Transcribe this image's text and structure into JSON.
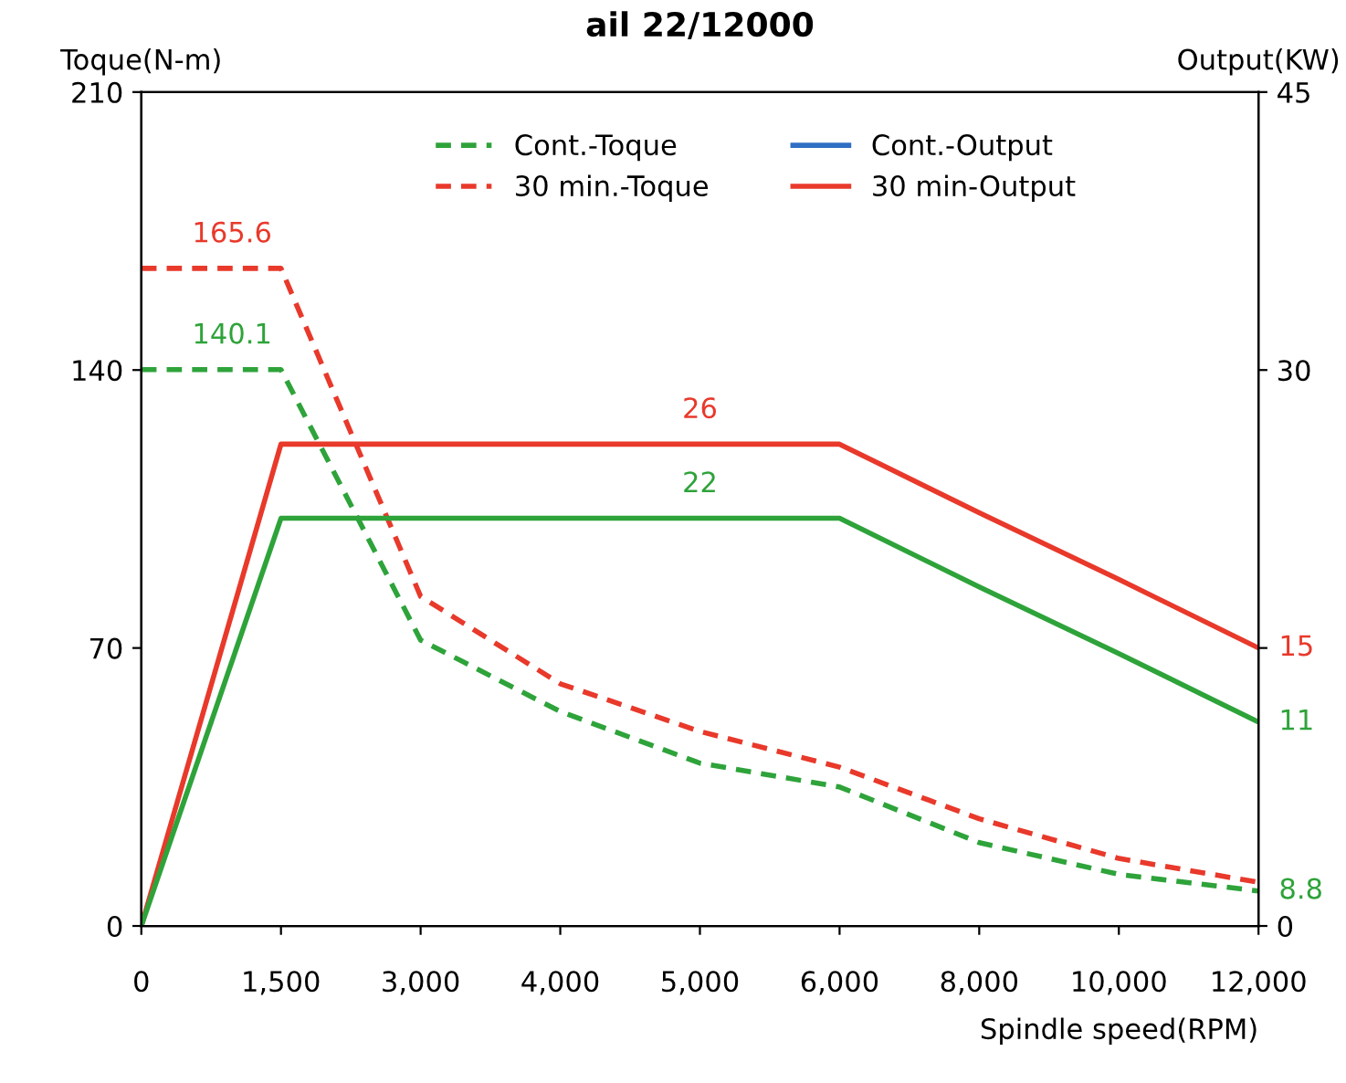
{
  "chart_data": {
    "type": "line",
    "title": "ail 22/12000",
    "ylabel": "Toque(N-m)",
    "y2label": "Output(KW)",
    "xlabel": "Spindle speed(RPM)",
    "categories": [
      "0",
      "1,500",
      "3,000",
      "4,000",
      "5,000",
      "6,000",
      "8,000",
      "10,000",
      "12,000"
    ],
    "series": [
      {
        "name": "Cont.-Toque",
        "color": "#2ea33a",
        "line_style": "dashed",
        "values": [
          140.1,
          140.1,
          72,
          54,
          41,
          35,
          21,
          13,
          8.8
        ],
        "value_labels": [
          null,
          "140.1",
          null,
          null,
          null,
          null,
          null,
          null,
          "8.8"
        ]
      },
      {
        "name": "30 min.-Toque",
        "color": "#e8392b",
        "line_style": "dashed",
        "values": [
          165.6,
          165.6,
          83,
          61,
          49,
          40,
          27,
          17,
          11
        ],
        "value_labels": [
          null,
          "165.6",
          null,
          null,
          null,
          null,
          null,
          null,
          null
        ]
      },
      {
        "name": "Cont.-Output",
        "color": "#2f6fc4",
        "line_style": "solid",
        "axis": "y2",
        "values": [
          null,
          null,
          null,
          null,
          null,
          null,
          null,
          null,
          null
        ]
      },
      {
        "name": "30 min-Output",
        "color": "#e8392b",
        "line_style": "solid",
        "axis": "y2",
        "values": [
          0,
          26,
          26,
          26,
          26,
          26,
          22.3,
          18.7,
          15
        ],
        "value_labels": [
          null,
          null,
          null,
          null,
          "26",
          null,
          null,
          null,
          "15"
        ]
      },
      {
        "color": "#2ea33a",
        "line_style": "solid",
        "axis": "y2",
        "values": [
          0,
          22,
          22,
          22,
          22,
          22,
          18.3,
          14.7,
          11
        ],
        "value_labels": [
          null,
          null,
          null,
          null,
          "22",
          null,
          null,
          null,
          "11"
        ]
      }
    ],
    "ylim": [
      0,
      210
    ],
    "yticks": [
      0,
      70,
      140,
      210
    ],
    "y2lim": [
      0,
      45
    ],
    "y2ticks": [
      0,
      {
        "value": 15,
        "label": null
      },
      30,
      45
    ],
    "legend": "top",
    "grid": false,
    "marker": "none"
  }
}
